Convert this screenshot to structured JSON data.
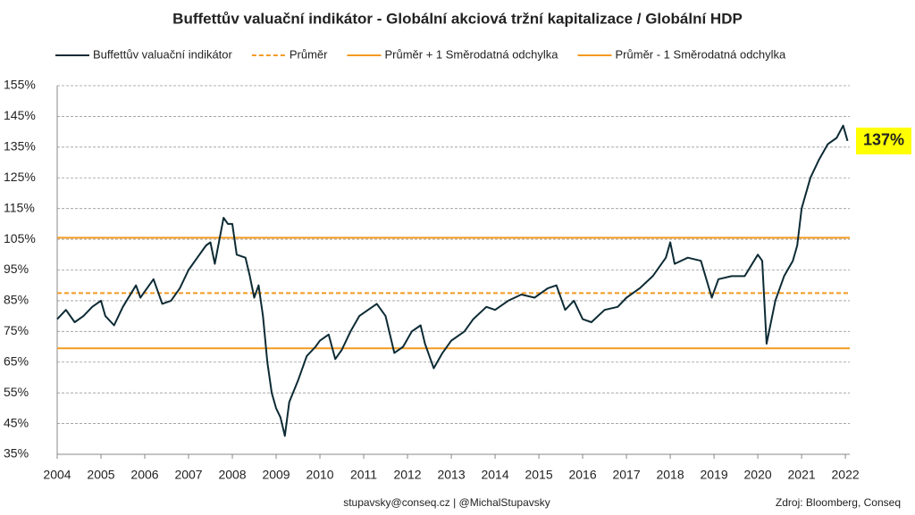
{
  "chart_data": {
    "type": "line",
    "title": "Buffettův valuační indikátor  - Globální  akciová tržní kapitalizace  / Globální  HDP",
    "x": [
      2004.0,
      2004.2,
      2004.4,
      2004.6,
      2004.8,
      2005.0,
      2005.1,
      2005.3,
      2005.5,
      2005.8,
      2005.9,
      2006.0,
      2006.2,
      2006.4,
      2006.6,
      2006.8,
      2007.0,
      2007.2,
      2007.4,
      2007.5,
      2007.6,
      2007.8,
      2007.9,
      2008.0,
      2008.1,
      2008.3,
      2008.4,
      2008.5,
      2008.6,
      2008.7,
      2008.8,
      2008.9,
      2009.0,
      2009.1,
      2009.2,
      2009.3,
      2009.5,
      2009.7,
      2009.9,
      2010.0,
      2010.2,
      2010.35,
      2010.5,
      2010.7,
      2010.9,
      2011.1,
      2011.3,
      2011.5,
      2011.7,
      2011.9,
      2012.1,
      2012.3,
      2012.4,
      2012.6,
      2012.8,
      2013.0,
      2013.3,
      2013.5,
      2013.8,
      2014.0,
      2014.3,
      2014.6,
      2014.9,
      2015.2,
      2015.4,
      2015.6,
      2015.8,
      2016.0,
      2016.2,
      2016.5,
      2016.8,
      2017.0,
      2017.3,
      2017.6,
      2017.9,
      2018.0,
      2018.1,
      2018.4,
      2018.7,
      2018.95,
      2019.1,
      2019.4,
      2019.7,
      2020.0,
      2020.1,
      2020.2,
      2020.4,
      2020.6,
      2020.8,
      2020.9,
      2021.0,
      2021.2,
      2021.4,
      2021.6,
      2021.8,
      2021.95,
      2022.05
    ],
    "series": [
      {
        "name": "Buffettův valuační indikátor",
        "color": "#0d2b35",
        "values": [
          79,
          82,
          78,
          80,
          83,
          85,
          80,
          77,
          83,
          90,
          86,
          88,
          92,
          84,
          85,
          89,
          95,
          99,
          103,
          104,
          97,
          112,
          110,
          110,
          100,
          99,
          93,
          86,
          90,
          80,
          65,
          55,
          50,
          47,
          41,
          52,
          59,
          67,
          70,
          72,
          74,
          66,
          69,
          75,
          80,
          82,
          84,
          80,
          68,
          70,
          75,
          77,
          71,
          63,
          68,
          72,
          75,
          79,
          83,
          82,
          85,
          87,
          86,
          89,
          90,
          82,
          85,
          79,
          78,
          82,
          83,
          86,
          89,
          93,
          99,
          104,
          97,
          99,
          98,
          86,
          92,
          93,
          93,
          100,
          98,
          71,
          85,
          93,
          98,
          103,
          115,
          125,
          131,
          136,
          138,
          142,
          137
        ]
      }
    ],
    "reference_lines": [
      {
        "name": "Průměr",
        "value": 87.5,
        "color": "#f39a21",
        "dashed": true
      },
      {
        "name": "Průměr + 1 Směrodatná odchylka",
        "value": 105.5,
        "color": "#f39a21",
        "dashed": false
      },
      {
        "name": "Průměr - 1 Směrodatná odchylka",
        "value": 69.5,
        "color": "#f39a21",
        "dashed": false
      }
    ],
    "annotation": {
      "text": "137%",
      "value": 137,
      "color": "#ffff00"
    },
    "xlim": [
      2004,
      2022.1
    ],
    "xticks": [
      2004,
      2005,
      2006,
      2007,
      2008,
      2009,
      2010,
      2011,
      2012,
      2013,
      2014,
      2015,
      2016,
      2017,
      2018,
      2019,
      2020,
      2021,
      2022
    ],
    "ylim": [
      35,
      155
    ],
    "yticks": [
      {
        "value": 35,
        "label": "35%"
      },
      {
        "value": 45,
        "label": "45%"
      },
      {
        "value": 55,
        "label": "55%"
      },
      {
        "value": 65,
        "label": "65%"
      },
      {
        "value": 75,
        "label": "75%"
      },
      {
        "value": 85,
        "label": "85%"
      },
      {
        "value": 95,
        "label": "95%"
      },
      {
        "value": 105,
        "label": "105%"
      },
      {
        "value": 115,
        "label": "115%"
      },
      {
        "value": 125,
        "label": "125%"
      },
      {
        "value": 135,
        "label": "135%"
      },
      {
        "value": 145,
        "label": "145%"
      },
      {
        "value": 155,
        "label": "155%"
      }
    ],
    "grid": true,
    "footer": "stupavsky@conseq.cz  |  @MichalStupavsky",
    "source": "Zdroj: Bloomberg, Conseq"
  }
}
